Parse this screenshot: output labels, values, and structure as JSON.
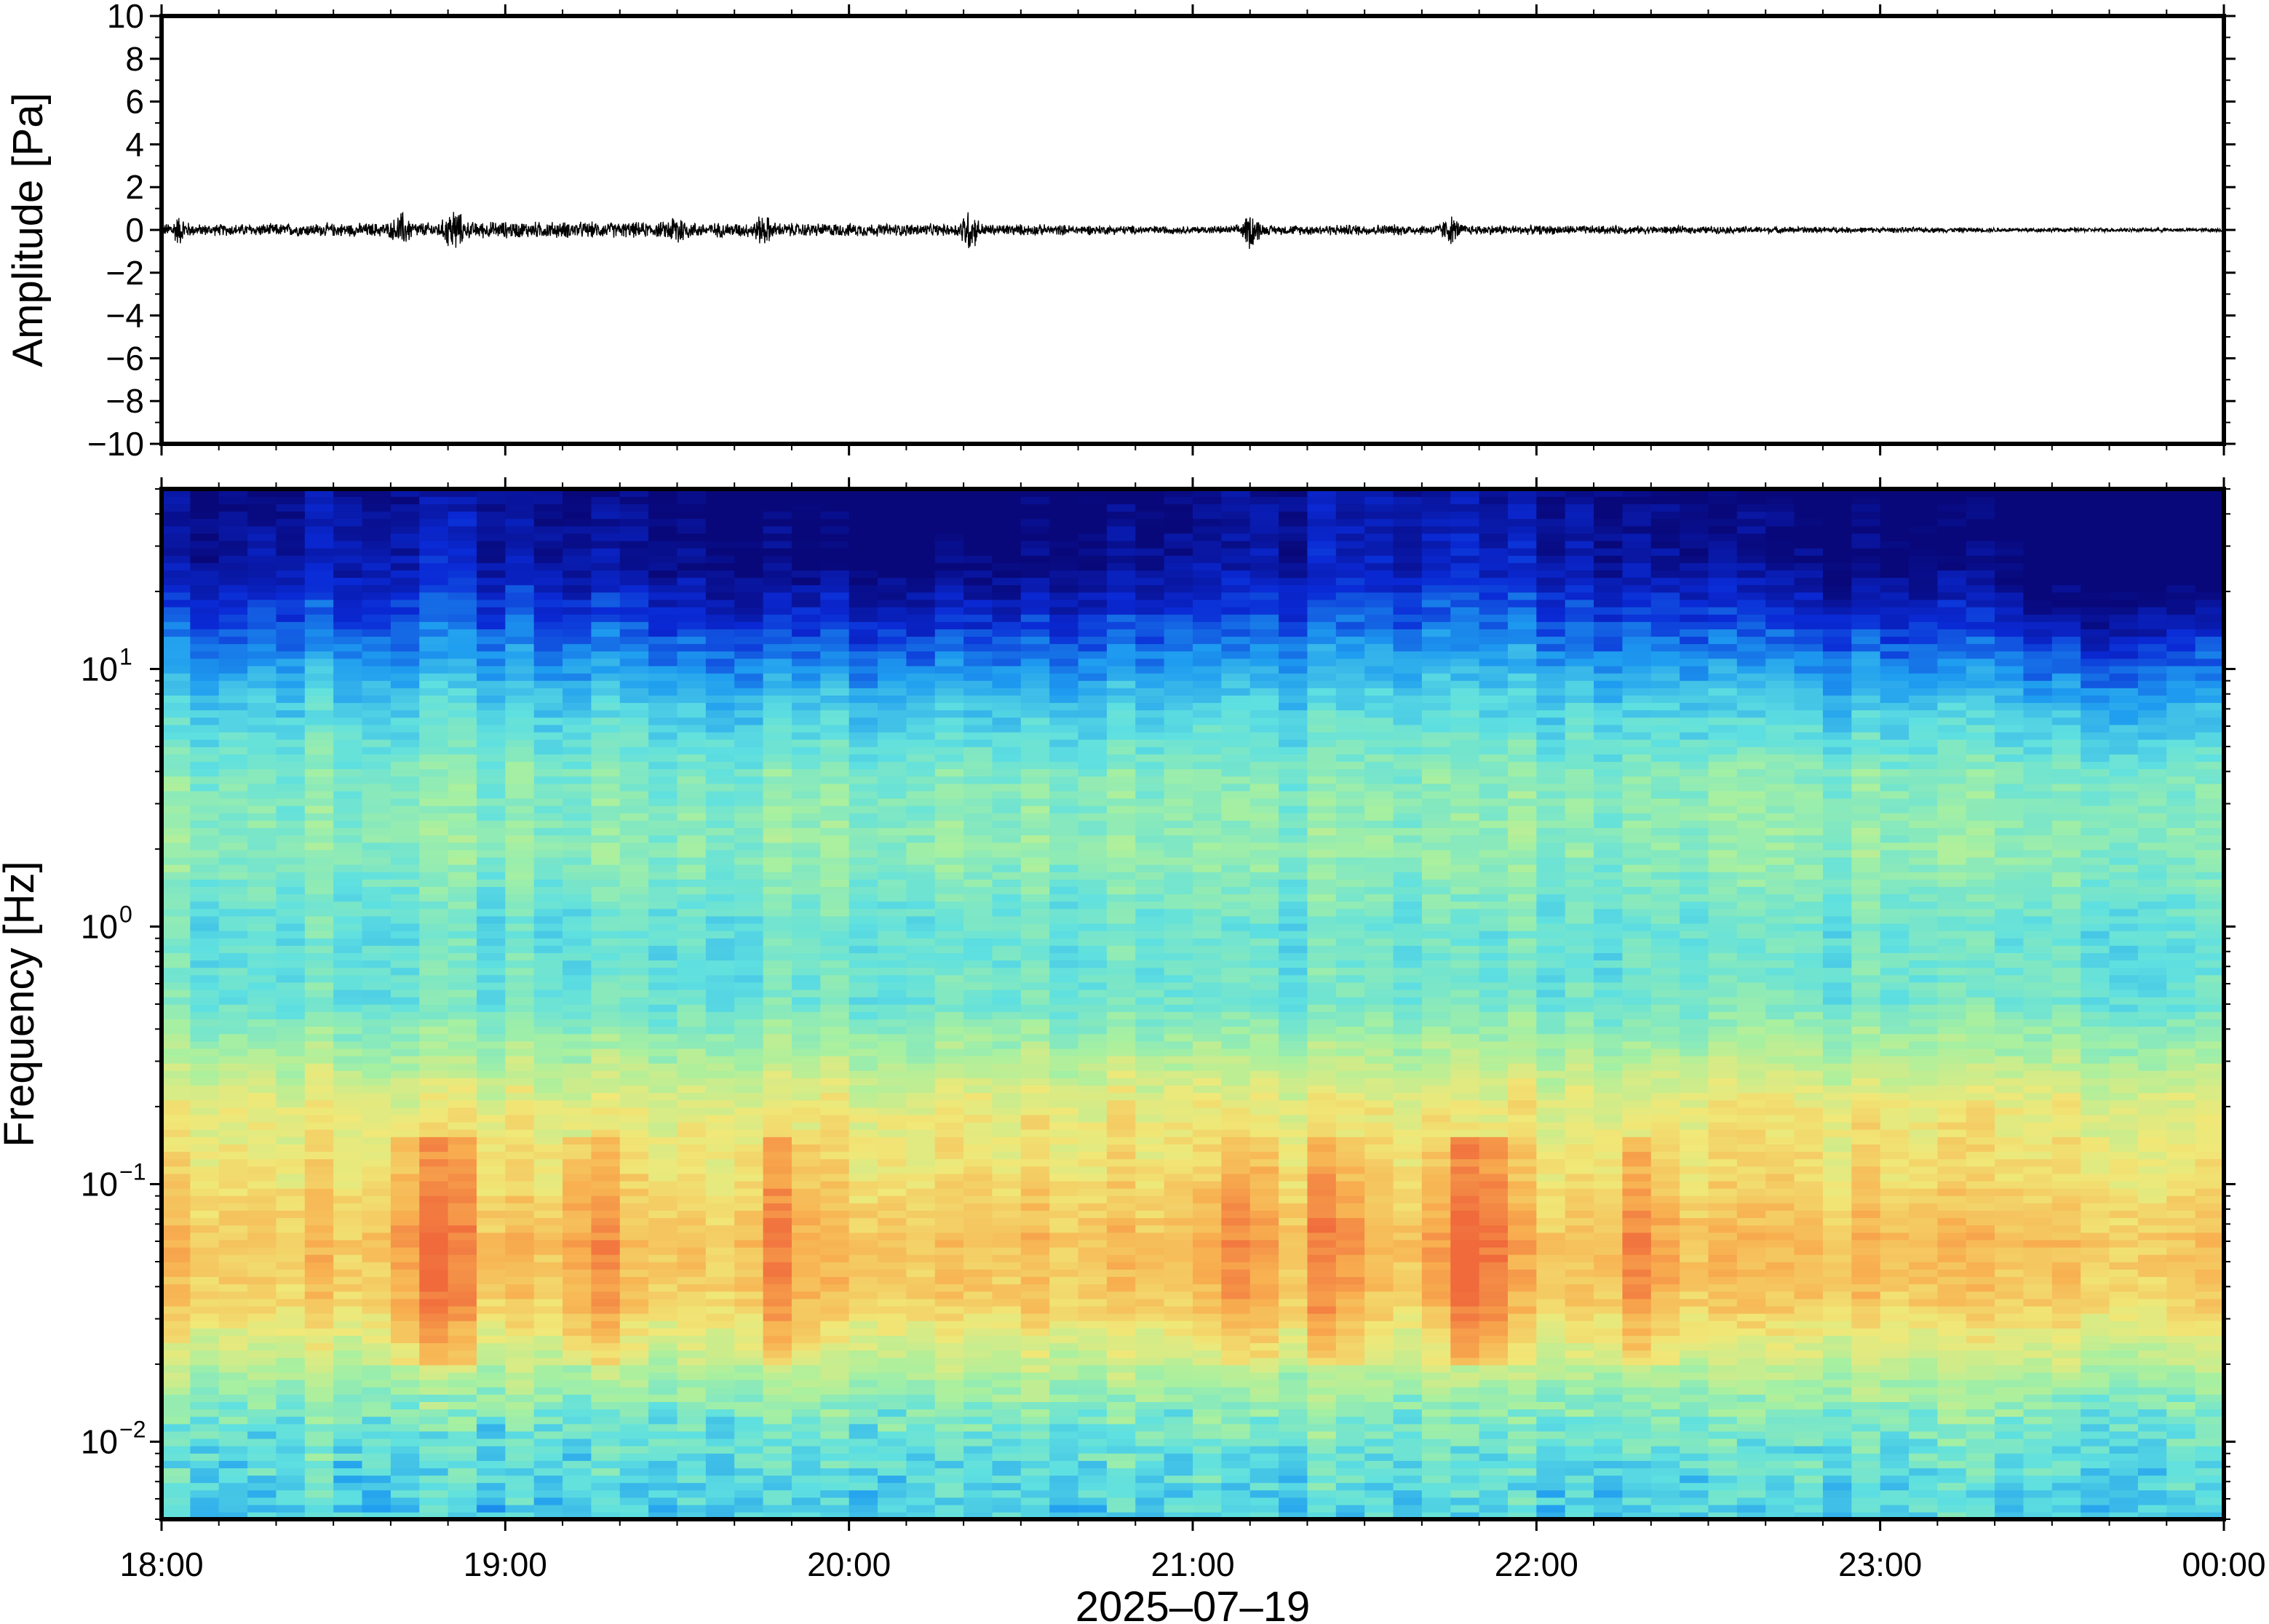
{
  "chart_data": [
    {
      "type": "line",
      "title": "",
      "ylabel": "Amplitude [Pa]",
      "ylim": [
        -10,
        10
      ],
      "y_ticks": [
        10,
        8,
        6,
        4,
        2,
        0,
        -2,
        -4,
        -6,
        -8,
        -10
      ],
      "y_tick_labels": [
        "10",
        "8",
        "6",
        "4",
        "2",
        "0",
        "−2",
        "−4",
        "−6",
        "−8",
        "−10"
      ],
      "x_range": [
        "18:00",
        "00:00"
      ],
      "series": [
        {
          "color": "#000000",
          "description_bursts_hours": [
            {
              "t": 18.05,
              "peak": 0.5
            },
            {
              "t": 18.7,
              "peak": 0.6
            },
            {
              "t": 18.85,
              "peak": 0.9
            },
            {
              "t": 19.5,
              "peak": 0.6
            },
            {
              "t": 19.75,
              "peak": 0.5
            },
            {
              "t": 20.35,
              "peak": 0.9
            },
            {
              "t": 21.17,
              "peak": 0.8
            },
            {
              "t": 21.75,
              "peak": 0.5
            }
          ],
          "envelope_hours": [
            18,
            18.5,
            19,
            19.5,
            20,
            20.5,
            21,
            21.5,
            22,
            22.5,
            23,
            23.5,
            24
          ],
          "envelope_pa": [
            0.3,
            0.35,
            0.45,
            0.4,
            0.35,
            0.3,
            0.2,
            0.3,
            0.25,
            0.2,
            0.15,
            0.12,
            0.1
          ]
        }
      ]
    },
    {
      "type": "heatmap",
      "title": "",
      "ylabel": "Frequency [Hz]",
      "xlabel": "2025–07–19",
      "y_scale": "log",
      "ylim": [
        0.005,
        50
      ],
      "y_ticks": [
        {
          "value": 10,
          "base": "10",
          "exp": "1"
        },
        {
          "value": 1,
          "base": "10",
          "exp": "0"
        },
        {
          "value": 0.1,
          "base": "10",
          "exp": "−1"
        },
        {
          "value": 0.01,
          "base": "10",
          "exp": "−2"
        }
      ],
      "x_ticks": [
        "18:00",
        "19:00",
        "20:00",
        "21:00",
        "22:00",
        "23:00",
        "00:00"
      ],
      "colormap": "jet",
      "colormap_stops": [
        "#08087a",
        "#0a2ad6",
        "#1e9cf0",
        "#5fe0e0",
        "#a8f0a0",
        "#f0e878",
        "#f8b050",
        "#f06a3c"
      ],
      "intensity_profile": [
        {
          "freq_hz": 50,
          "level": 0.0
        },
        {
          "freq_hz": 25,
          "level": 0.05
        },
        {
          "freq_hz": 15,
          "level": 0.18
        },
        {
          "freq_hz": 8,
          "level": 0.36
        },
        {
          "freq_hz": 4,
          "level": 0.5
        },
        {
          "freq_hz": 2,
          "level": 0.53
        },
        {
          "freq_hz": 1,
          "level": 0.45
        },
        {
          "freq_hz": 0.5,
          "level": 0.47
        },
        {
          "freq_hz": 0.3,
          "level": 0.6
        },
        {
          "freq_hz": 0.2,
          "level": 0.7
        },
        {
          "freq_hz": 0.12,
          "level": 0.73
        },
        {
          "freq_hz": 0.06,
          "level": 0.82
        },
        {
          "freq_hz": 0.035,
          "level": 0.78
        },
        {
          "freq_hz": 0.02,
          "level": 0.62
        },
        {
          "freq_hz": 0.012,
          "level": 0.48
        },
        {
          "freq_hz": 0.006,
          "level": 0.4
        }
      ],
      "hotspots_hours": [
        18.75,
        18.85,
        19.25,
        19.8,
        21.15,
        21.4,
        21.8,
        21.85,
        22.3
      ]
    }
  ]
}
